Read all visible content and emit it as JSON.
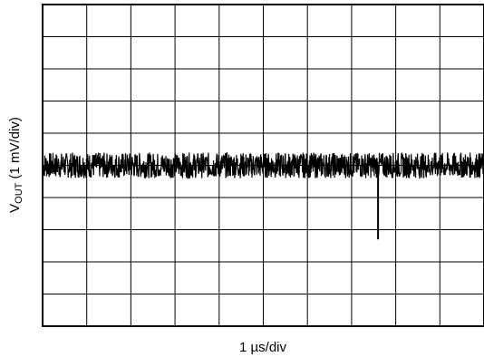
{
  "chart_data": {
    "type": "line",
    "title": "",
    "xlabel": "1 µs/div",
    "ylabel": {
      "prefix": "V",
      "subscript": "OUT",
      "suffix": " (1 mV/div)"
    },
    "x_unit": "div",
    "y_unit": "div",
    "xlim": [
      0,
      10
    ],
    "ylim": [
      -5,
      5
    ],
    "x_divisions": 10,
    "y_divisions": 10,
    "grid": true,
    "legend": "none",
    "series": [
      {
        "description_baseline_div": 0,
        "noise_peak_to_peak_div": 0.8,
        "transient": {
          "x_div": 7.6,
          "min_y_div": -2.3
        }
      }
    ],
    "colors": {
      "trace": "#000000",
      "grid": "#000000",
      "frame": "#000000"
    }
  }
}
